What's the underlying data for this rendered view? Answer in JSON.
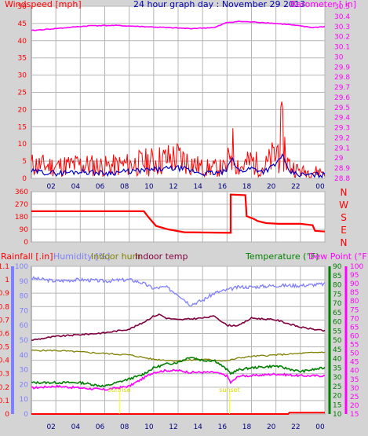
{
  "colors": {
    "background": "#d4d4d4",
    "plot_bg": "#ffffff",
    "grid": "#b4b4b4",
    "wind": "#ff0000",
    "wind_avg": "#0000c8",
    "barometer": "#ff00ff",
    "direction": "#ff0000",
    "rain": "#ff0000",
    "humidity": "#8080ff",
    "indoor_hum": "#808000",
    "indoor_temp": "#800040",
    "temperature": "#008000",
    "dew_point": "#ff00ff"
  },
  "chart_data": [
    {
      "type": "line",
      "title": "24 hour graph day : November 29 2013",
      "x_tick_labels": [
        "02",
        "04",
        "06",
        "08",
        "10",
        "12",
        "14",
        "16",
        "18",
        "20",
        "22",
        "00"
      ],
      "y_left": {
        "label": "Windspeed [mph]",
        "range": [
          0,
          50
        ],
        "ticks": [
          "0",
          "5",
          "10",
          "15",
          "20",
          "25",
          "30",
          "35",
          "40",
          "45",
          "50"
        ]
      },
      "y_right": {
        "label": "Barometer [ in]",
        "range": [
          28.8,
          30.5
        ],
        "ticks": [
          "28.8",
          "28.9",
          "29",
          "29.1",
          "29.2",
          "29.3",
          "29.4",
          "29.5",
          "29.6",
          "29.7",
          "29.8",
          "29.9",
          "30",
          "30.1",
          "30.2",
          "30.3",
          "30.4",
          "30.5"
        ]
      },
      "grid": true,
      "series": [
        {
          "name": "Windspeed",
          "axis": "left",
          "hours": [
            0,
            2,
            4,
            6,
            8,
            10,
            12,
            14,
            15,
            16,
            16.3,
            17,
            18,
            19,
            20,
            20.5,
            21,
            22,
            23,
            24
          ],
          "values": [
            4,
            3.5,
            4,
            3.5,
            4,
            5,
            6,
            3,
            3,
            3,
            10,
            3,
            5,
            3,
            7,
            12,
            4,
            2,
            2,
            2
          ]
        },
        {
          "name": "Wind average",
          "axis": "left",
          "hours": [
            0,
            2,
            4,
            6,
            8,
            10,
            12,
            14,
            15,
            16,
            16.3,
            17,
            18,
            19,
            20,
            20.5,
            21,
            22,
            23,
            24
          ],
          "values": [
            2,
            1.5,
            2,
            1.5,
            2,
            2.5,
            3,
            1.5,
            1.5,
            2,
            6,
            2,
            3,
            2,
            4,
            7,
            2,
            1,
            1,
            1
          ]
        },
        {
          "name": "Barometer",
          "axis": "right",
          "hours": [
            0,
            1,
            3,
            5,
            7,
            9,
            11,
            13,
            15,
            16,
            17,
            19,
            21,
            23,
            24
          ],
          "values": [
            30.26,
            30.27,
            30.29,
            30.31,
            30.31,
            30.3,
            30.29,
            30.28,
            30.29,
            30.34,
            30.35,
            30.34,
            30.32,
            30.29,
            30.3
          ]
        }
      ]
    },
    {
      "type": "line",
      "y_left": {
        "range": [
          0,
          360
        ],
        "ticks": [
          "0",
          "90",
          "180",
          "270",
          "360"
        ]
      },
      "y_right_labels": [
        "N",
        "W",
        "S",
        "E",
        "N"
      ],
      "x_tick_labels": [
        "02",
        "04",
        "06",
        "08",
        "10",
        "12",
        "14",
        "16",
        "18",
        "20",
        "22",
        "00"
      ],
      "grid": true,
      "series": [
        {
          "name": "Wind direction",
          "hours": [
            0,
            9.2,
            9.6,
            10.2,
            11.2,
            12.5,
            16.3,
            16.3,
            17.5,
            17.6,
            18.2,
            18.5,
            19.2,
            20.2,
            22,
            23,
            23.2,
            24
          ],
          "values": [
            220,
            220,
            175,
            115,
            90,
            70,
            65,
            340,
            335,
            185,
            165,
            150,
            135,
            130,
            130,
            120,
            80,
            75
          ]
        }
      ]
    },
    {
      "type": "line",
      "legend": [
        "Rainfall [.in]",
        "Humidity [%]",
        "Indoor hum",
        "Indoor temp",
        "Temperature (°F)",
        "Dew Point (°F)"
      ],
      "x_tick_labels": [
        "02",
        "04",
        "06",
        "08",
        "10",
        "12",
        "14",
        "16",
        "18",
        "20",
        "22",
        "00"
      ],
      "y_rain": {
        "range": [
          0,
          1.1
        ],
        "ticks": [
          "0",
          "0.1",
          "0.2",
          "0.3",
          "0.4",
          "0.5",
          "0.6",
          "0.7",
          "0.8",
          "0.9",
          "1",
          "1.1"
        ]
      },
      "y_humidity": {
        "range": [
          0,
          100
        ],
        "ticks": [
          "0",
          "10",
          "20",
          "30",
          "40",
          "50",
          "60",
          "70",
          "80",
          "90",
          "100"
        ]
      },
      "y_temperature": {
        "range": [
          10,
          90
        ],
        "ticks": [
          "10",
          "15",
          "20",
          "25",
          "30",
          "35",
          "40",
          "45",
          "50",
          "55",
          "60",
          "65",
          "70",
          "75",
          "80",
          "85",
          "90"
        ]
      },
      "y_dewpoint": {
        "range": [
          15,
          100
        ],
        "ticks": [
          "15",
          "20",
          "25",
          "30",
          "35",
          "40",
          "45",
          "50",
          "55",
          "60",
          "65",
          "70",
          "75",
          "80",
          "85",
          "90",
          "95",
          "100"
        ]
      },
      "annotations": [
        "sunrise",
        "sunset"
      ],
      "annotation_hours": [
        7.2,
        16.2
      ],
      "grid": true,
      "series": [
        {
          "name": "Rainfall",
          "axis": "rain",
          "hours": [
            0,
            21,
            21.1,
            24
          ],
          "values": [
            0,
            0,
            0.01,
            0.01
          ]
        },
        {
          "name": "Humidity",
          "axis": "humidity",
          "hours": [
            0,
            2,
            4,
            6,
            8,
            9,
            10,
            11,
            12,
            13,
            14,
            15,
            16,
            17,
            18,
            20,
            22,
            24
          ],
          "values": [
            92,
            90,
            91,
            90,
            91,
            89,
            85,
            86,
            81,
            74,
            77,
            82,
            84,
            86,
            86,
            87,
            87,
            88
          ]
        },
        {
          "name": "Indoor hum",
          "axis": "humidity",
          "hours": [
            0,
            2,
            4,
            6,
            8,
            10,
            12,
            14,
            16,
            17,
            18,
            20,
            22,
            24
          ],
          "values": [
            43,
            43,
            42,
            41,
            40,
            37,
            36,
            37,
            36,
            38,
            39,
            40,
            41,
            42
          ]
        },
        {
          "name": "Indoor temp",
          "axis": "temperature",
          "hours": [
            0,
            2,
            4,
            6,
            8,
            9,
            10,
            10.5,
            11,
            12,
            14,
            15,
            16,
            17,
            18,
            20,
            22,
            24
          ],
          "values": [
            50,
            52,
            53,
            54,
            56,
            59,
            63,
            64,
            62,
            61,
            62,
            63,
            58,
            58,
            62,
            61,
            57,
            55
          ]
        },
        {
          "name": "Temperature",
          "axis": "temperature",
          "hours": [
            0,
            2,
            4,
            6,
            7,
            8,
            9,
            10,
            11,
            12,
            13,
            14,
            15,
            16,
            16.3,
            17,
            18,
            20,
            22,
            24
          ],
          "values": [
            27,
            27,
            27,
            25,
            27,
            29,
            31,
            35,
            37,
            38,
            41,
            39,
            39,
            34,
            32,
            34,
            35,
            36,
            33,
            35
          ]
        },
        {
          "name": "Dew Point",
          "axis": "dewpoint",
          "hours": [
            0,
            2,
            4,
            6,
            7,
            8,
            9,
            10,
            11,
            12,
            13,
            14,
            15,
            16,
            16.3,
            17,
            18,
            20,
            22,
            24
          ],
          "values": [
            30,
            31,
            30,
            29,
            30,
            31,
            35,
            39,
            40,
            40,
            39,
            39,
            39,
            37,
            33,
            37,
            37,
            38,
            37,
            37
          ]
        }
      ]
    }
  ]
}
